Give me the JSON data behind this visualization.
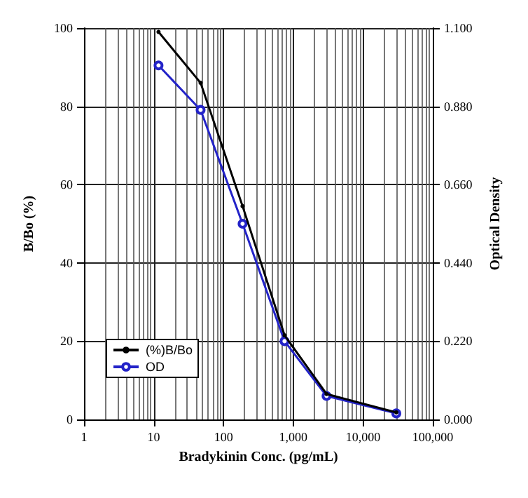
{
  "chart_data": {
    "type": "line",
    "xlabel": "Bradykinin Conc. (pg/mL)",
    "ylabel": "B/Bo (%)",
    "y2label": "Optical Density",
    "log": "x",
    "grid": true,
    "legend": "bottom left",
    "marker": "circle",
    "line_style": "solid",
    "xlim": [
      1,
      100000
    ],
    "xticks": [
      1,
      10,
      100,
      {
        "value": 1000,
        "label": "1,000"
      },
      {
        "value": 10000,
        "label": "10,000"
      },
      {
        "value": 100000,
        "label": "100,000"
      }
    ],
    "ylim": [
      0,
      100
    ],
    "yticks": [
      0,
      20,
      40,
      60,
      80,
      100
    ],
    "y2lim": [
      0,
      1.1
    ],
    "y2ticks": [
      {
        "value": 0,
        "label": "0.000"
      },
      {
        "value": 0.22,
        "label": "0.220"
      },
      {
        "value": 0.44,
        "label": "0.440"
      },
      {
        "value": 0.66,
        "label": "0.660"
      },
      {
        "value": 0.88,
        "label": "0.880"
      },
      {
        "value": 1.1,
        "label": "1.100"
      }
    ],
    "x": [
      11.7,
      46.9,
      187.5,
      750,
      3000,
      30000
    ],
    "series": [
      {
        "name": "(%)B/Bo",
        "color": "#000000",
        "values": [
          99,
          86,
          54.5,
          21.5,
          6.5,
          1.8
        ]
      },
      {
        "name": "OD",
        "color": "#2323c8",
        "axis": "y2",
        "values": [
          0.995,
          0.87,
          0.55,
          0.22,
          0.066,
          0.017
        ]
      }
    ]
  }
}
